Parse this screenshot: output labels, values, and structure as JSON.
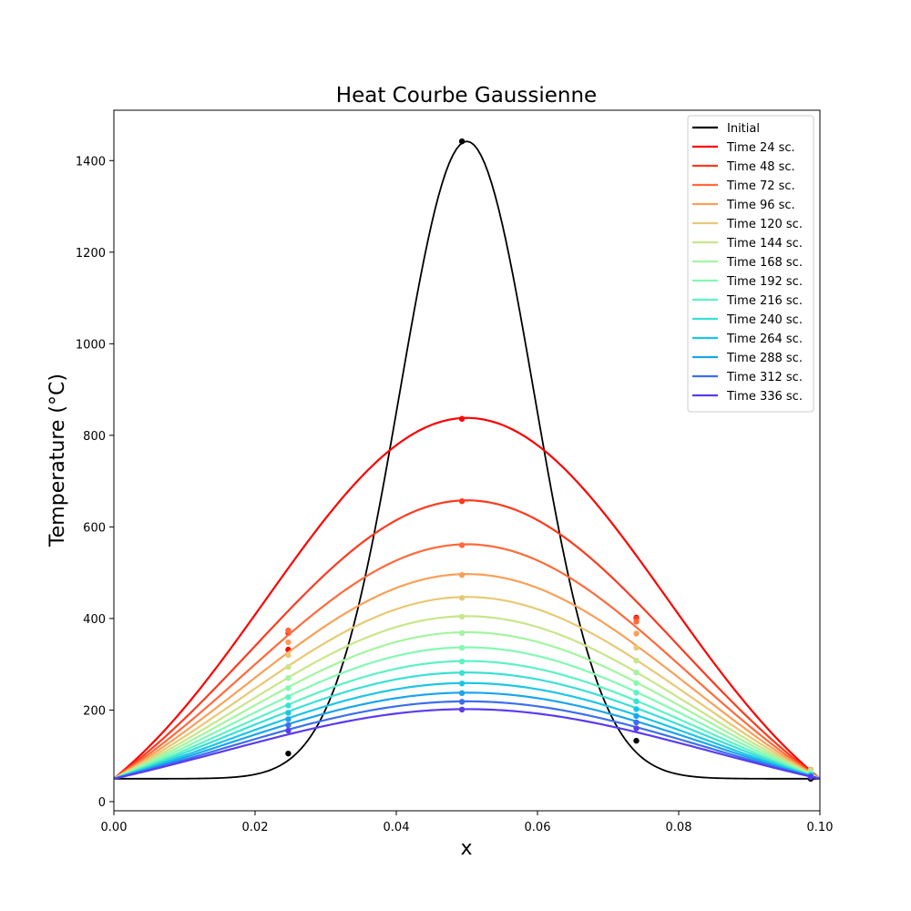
{
  "chart_data": {
    "type": "line",
    "title": "Heat Courbe Gaussienne",
    "xlabel": "x",
    "ylabel": "Temperature (°C)",
    "xlim": [
      0.0,
      0.1
    ],
    "ylim": [
      -20,
      1510
    ],
    "xticks": [
      "0.00",
      "0.02",
      "0.04",
      "0.06",
      "0.08",
      "0.10"
    ],
    "yticks": [
      "0",
      "200",
      "400",
      "600",
      "800",
      "1000",
      "1200",
      "1400"
    ],
    "grid": false,
    "legend_position": "top-right",
    "marker_x": [
      0.0247,
      0.0493,
      0.074,
      0.0987
    ],
    "series": [
      {
        "name": "Initial",
        "color": "#000000",
        "kind": "gaussian",
        "peak": 1442,
        "base": 50,
        "mu": 0.05,
        "sigma": 0.0095,
        "markers": [
          105,
          1442,
          133,
          50
        ]
      },
      {
        "name": "Time 24 sc.",
        "color": "#ff0000",
        "peak": 838,
        "edge_shoulder": 0.52,
        "markers": [
          332,
          836,
          402,
          62
        ]
      },
      {
        "name": "Time 48 sc.",
        "color": "#ff3a1e",
        "peak": 658,
        "edge_shoulder": 0.6,
        "markers": [
          368,
          656,
          400,
          63
        ]
      },
      {
        "name": "Time 72 sc.",
        "color": "#ff6a3b",
        "peak": 562,
        "edge_shoulder": 0.64,
        "markers": [
          374,
          560,
          393,
          65
        ]
      },
      {
        "name": "Time 96 sc.",
        "color": "#f9a058",
        "peak": 497,
        "edge_shoulder": 0.66,
        "markers": [
          348,
          495,
          367,
          70
        ]
      },
      {
        "name": "Time 120 sc.",
        "color": "#e7c975",
        "peak": 447,
        "edge_shoulder": 0.67,
        "markers": [
          320,
          445,
          336,
          68
        ]
      },
      {
        "name": "Time 144 sc.",
        "color": "#c8e68a",
        "peak": 405,
        "edge_shoulder": 0.68,
        "markers": [
          294,
          404,
          308,
          66
        ]
      },
      {
        "name": "Time 168 sc.",
        "color": "#a3f5a0",
        "peak": 370,
        "edge_shoulder": 0.69,
        "markers": [
          270,
          368,
          282,
          64
        ]
      },
      {
        "name": "Time 192 sc.",
        "color": "#84f9b4",
        "peak": 337,
        "edge_shoulder": 0.7,
        "markers": [
          248,
          336,
          259,
          62
        ]
      },
      {
        "name": "Time 216 sc.",
        "color": "#5cf2c4",
        "peak": 307,
        "edge_shoulder": 0.71,
        "markers": [
          228,
          306,
          238,
          60
        ]
      },
      {
        "name": "Time 240 sc.",
        "color": "#38e0d6",
        "peak": 282,
        "edge_shoulder": 0.72,
        "markers": [
          210,
          281,
          219,
          58
        ]
      },
      {
        "name": "Time 264 sc.",
        "color": "#1bc6e4",
        "peak": 259,
        "edge_shoulder": 0.72,
        "markers": [
          194,
          258,
          202,
          57
        ]
      },
      {
        "name": "Time 288 sc.",
        "color": "#1aa5ec",
        "peak": 238,
        "edge_shoulder": 0.73,
        "markers": [
          180,
          237,
          187,
          56
        ]
      },
      {
        "name": "Time 312 sc.",
        "color": "#3c6ef0",
        "peak": 219,
        "edge_shoulder": 0.73,
        "markers": [
          167,
          218,
          173,
          55
        ]
      },
      {
        "name": "Time 336 sc.",
        "color": "#5a3cf0",
        "peak": 202,
        "edge_shoulder": 0.74,
        "markers": [
          155,
          201,
          160,
          54
        ]
      }
    ],
    "boundary_value": 50
  }
}
